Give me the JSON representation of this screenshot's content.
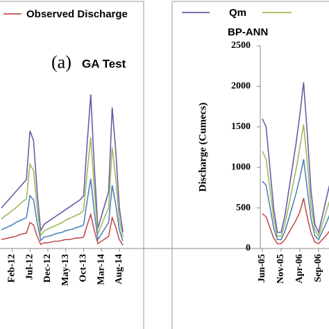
{
  "chart_data": [
    {
      "type": "line",
      "title": "(a)",
      "subtitle": "GA Test",
      "categories": [
        null,
        null,
        null,
        "Feb-12",
        null,
        null,
        null,
        null,
        "Jul-12",
        null,
        null,
        null,
        null,
        "Dec-12",
        null,
        null,
        null,
        null,
        "May-13",
        null,
        null,
        null,
        null,
        "Oct-13",
        null,
        null,
        null,
        null,
        "Mar-14",
        null,
        null,
        null,
        null,
        "Aug-14",
        null
      ],
      "ylim": [
        0,
        2500
      ],
      "series": [
        {
          "color": "#6a5aa8",
          "values": [
            500,
            550,
            600,
            650,
            700,
            750,
            800,
            850,
            1450,
            1330,
            700,
            220,
            300,
            330,
            360,
            390,
            420,
            450,
            480,
            510,
            540,
            570,
            600,
            650,
            1300,
            1900,
            1000,
            250,
            400,
            550,
            700,
            1740,
            1200,
            500,
            200
          ]
        },
        {
          "color": "#9bbb59",
          "values": [
            360,
            400,
            430,
            470,
            500,
            540,
            580,
            610,
            1040,
            960,
            500,
            160,
            220,
            240,
            260,
            280,
            300,
            320,
            350,
            370,
            390,
            410,
            430,
            470,
            940,
            1370,
            720,
            180,
            290,
            400,
            500,
            1250,
            860,
            360,
            140
          ]
        },
        {
          "color": "#4f81bd",
          "values": [
            230,
            250,
            270,
            290,
            320,
            340,
            360,
            380,
            650,
            600,
            320,
            100,
            140,
            150,
            160,
            180,
            190,
            200,
            220,
            230,
            240,
            260,
            270,
            290,
            590,
            860,
            450,
            110,
            180,
            250,
            320,
            780,
            540,
            230,
            90
          ]
        },
        {
          "name": "Observed Discharge",
          "color": "#c0504d",
          "values": [
            110,
            120,
            130,
            140,
            150,
            170,
            180,
            190,
            320,
            290,
            150,
            50,
            70,
            70,
            80,
            90,
            90,
            100,
            110,
            110,
            120,
            130,
            130,
            140,
            290,
            420,
            220,
            60,
            90,
            120,
            150,
            380,
            260,
            110,
            40
          ]
        }
      ]
    },
    {
      "type": "line",
      "annotation": "BP-ANN",
      "y_label": "Discharge (Cumecs)",
      "categories": [
        "Jun-05",
        null,
        null,
        null,
        null,
        "Nov-05",
        null,
        null,
        null,
        null,
        "Apr-06",
        null,
        null,
        null,
        null,
        "Sep-06",
        null,
        null,
        null
      ],
      "ylim": [
        0,
        2500
      ],
      "yticks": [
        0,
        500,
        1000,
        1500,
        2000,
        2500
      ],
      "series": [
        {
          "name": "Qm",
          "color": "#6a5aa8",
          "values": [
            1600,
            1500,
            1000,
            500,
            200,
            200,
            400,
            700,
            1000,
            1300,
            1650,
            2050,
            1400,
            700,
            300,
            200,
            400,
            600,
            800
          ]
        },
        {
          "color": "#9bbb59",
          "values": [
            1200,
            1100,
            750,
            380,
            150,
            150,
            300,
            520,
            750,
            980,
            1250,
            1530,
            1050,
            520,
            230,
            150,
            300,
            450,
            600
          ]
        },
        {
          "color": "#4f81bd",
          "values": [
            830,
            780,
            520,
            260,
            110,
            110,
            210,
            360,
            520,
            680,
            870,
            1100,
            730,
            360,
            160,
            110,
            210,
            310,
            420
          ]
        },
        {
          "color": "#c0504d",
          "values": [
            430,
            390,
            260,
            130,
            60,
            60,
            110,
            190,
            270,
            350,
            450,
            620,
            380,
            190,
            80,
            60,
            110,
            160,
            220
          ]
        }
      ]
    }
  ]
}
